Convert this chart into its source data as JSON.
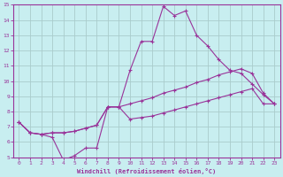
{
  "background_color": "#c8eef0",
  "line_color": "#993399",
  "grid_color": "#aacccc",
  "xlabel": "Windchill (Refroidissement éolien,°C)",
  "xlabel_color": "#993399",
  "tick_color": "#993399",
  "spine_color": "#993399",
  "xlim": [
    -0.5,
    23.5
  ],
  "ylim": [
    5,
    15
  ],
  "xticks": [
    0,
    1,
    2,
    3,
    4,
    5,
    6,
    7,
    8,
    9,
    10,
    11,
    12,
    13,
    14,
    15,
    16,
    17,
    18,
    19,
    20,
    21,
    22,
    23
  ],
  "yticks": [
    5,
    6,
    7,
    8,
    9,
    10,
    11,
    12,
    13,
    14,
    15
  ],
  "line1_x": [
    0,
    1,
    2,
    3,
    4,
    5,
    6,
    7,
    8,
    9,
    10,
    11,
    12,
    13,
    14,
    15,
    16,
    17,
    18,
    19,
    20,
    21,
    22,
    23
  ],
  "line1_y": [
    7.3,
    6.6,
    6.5,
    6.3,
    4.8,
    5.1,
    5.6,
    5.6,
    8.3,
    8.3,
    10.7,
    12.6,
    12.6,
    14.9,
    14.3,
    14.6,
    13.0,
    12.3,
    11.4,
    10.7,
    10.5,
    9.8,
    9.1,
    8.5
  ],
  "line2_x": [
    0,
    1,
    2,
    3,
    4,
    5,
    6,
    7,
    8,
    9,
    10,
    11,
    12,
    13,
    14,
    15,
    16,
    17,
    18,
    19,
    20,
    21,
    22,
    23
  ],
  "line2_y": [
    7.3,
    6.6,
    6.5,
    6.6,
    6.6,
    6.7,
    6.9,
    7.1,
    8.3,
    8.3,
    8.5,
    8.7,
    8.9,
    9.2,
    9.4,
    9.6,
    9.9,
    10.1,
    10.4,
    10.6,
    10.8,
    10.5,
    9.2,
    8.5
  ],
  "line3_x": [
    0,
    1,
    2,
    3,
    4,
    5,
    6,
    7,
    8,
    9,
    10,
    11,
    12,
    13,
    14,
    15,
    16,
    17,
    18,
    19,
    20,
    21,
    22,
    23
  ],
  "line3_y": [
    7.3,
    6.6,
    6.5,
    6.6,
    6.6,
    6.7,
    6.9,
    7.1,
    8.3,
    8.3,
    7.5,
    7.6,
    7.7,
    7.9,
    8.1,
    8.3,
    8.5,
    8.7,
    8.9,
    9.1,
    9.3,
    9.5,
    8.5,
    8.5
  ]
}
